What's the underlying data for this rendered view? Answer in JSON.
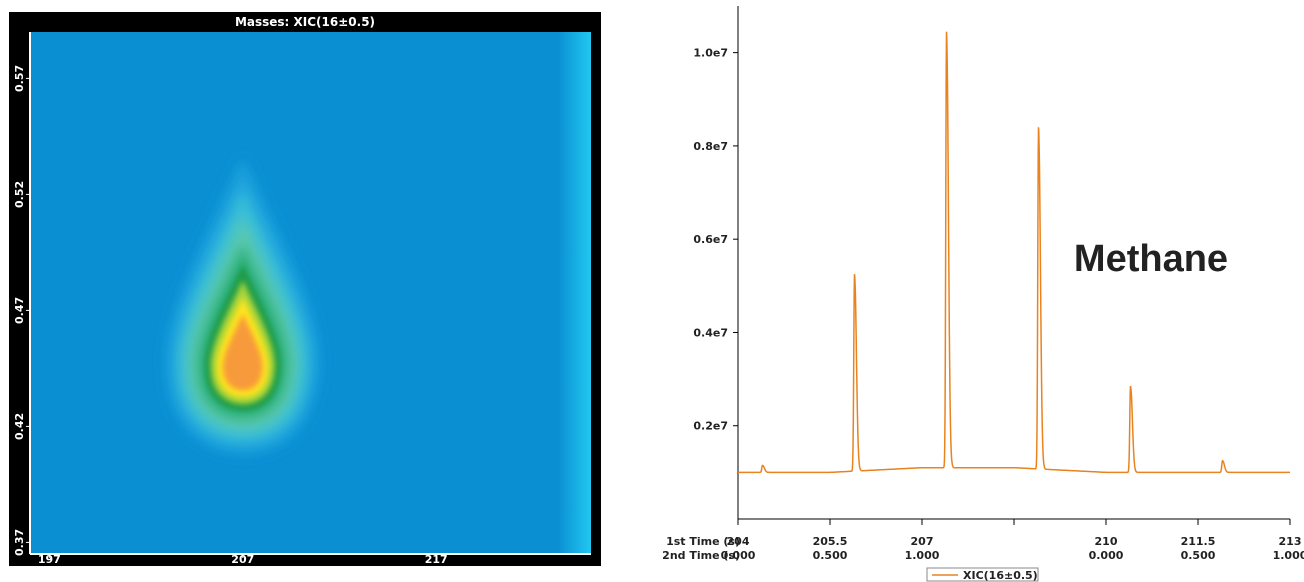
{
  "chart_data": [
    {
      "type": "heatmap",
      "title": "Masses: XIC(16±0.5)",
      "x_ticks": [
        "197",
        "207",
        "217"
      ],
      "x_tick_values": [
        197,
        207,
        217
      ],
      "xlim": [
        196,
        225
      ],
      "y_ticks": [
        "0.57",
        "0.52",
        "0.47",
        "0.42",
        "0.37"
      ],
      "y_tick_values": [
        0.57,
        0.52,
        0.47,
        0.42,
        0.37
      ],
      "ylim": [
        0.365,
        0.59
      ],
      "peak": {
        "x": 207,
        "y": 0.445
      },
      "colors": {
        "frame": "#000000",
        "background": "#0a8fd3",
        "right_band": "#22c8f0",
        "levels": [
          "#1aa3dd",
          "#3bbfd6",
          "#5cc9b0",
          "#2fb07a",
          "#1d9b4a",
          "#a8d43a",
          "#ffe51a",
          "#f79a3a"
        ]
      }
    },
    {
      "type": "line",
      "annotation": "Methane",
      "y_ticks": [
        "1.0e7",
        "0.8e7",
        "0.6e7",
        "0.4e7",
        "0.2e7"
      ],
      "y_tick_values": [
        10000000,
        8000000,
        6000000,
        4000000,
        2000000
      ],
      "ylim": [
        0,
        11000000
      ],
      "x_axis_rows": [
        {
          "label": "1st Time (s)",
          "ticks": [
            "204",
            "205.5",
            "207",
            "210",
            "211.5",
            "213"
          ]
        },
        {
          "label": "2nd Time (s)",
          "ticks": [
            "0.000",
            "0.500",
            "1.000",
            "0.000",
            "0.500",
            "1.000"
          ]
        }
      ],
      "xlim": [
        204,
        213
      ],
      "x_tick_values": [
        204,
        205.5,
        207,
        208.5,
        210,
        211.5,
        213
      ],
      "x_tick_labels": [
        "204",
        "205.5",
        "207",
        "",
        "210",
        "211.5",
        "213"
      ],
      "x_tick_labels_2": [
        "0.000",
        "0.500",
        "1.000",
        "",
        "0.000",
        "0.500",
        "1.000"
      ],
      "series": [
        {
          "name": "XIC(16±0.5)",
          "color": "#e8831f",
          "baseline": [
            [
              204,
              1000000
            ],
            [
              205.5,
              1000000
            ],
            [
              207,
              1100000
            ],
            [
              208.5,
              1100000
            ],
            [
              210,
              1000000
            ],
            [
              211.5,
              1000000
            ],
            [
              213,
              1000000
            ]
          ],
          "peaks": [
            {
              "x": 204.4,
              "height": 1150000
            },
            {
              "x": 205.9,
              "height": 5250000
            },
            {
              "x": 207.4,
              "height": 10450000
            },
            {
              "x": 208.9,
              "height": 8400000
            },
            {
              "x": 210.4,
              "height": 2850000
            },
            {
              "x": 211.9,
              "height": 1250000
            }
          ]
        }
      ]
    }
  ]
}
